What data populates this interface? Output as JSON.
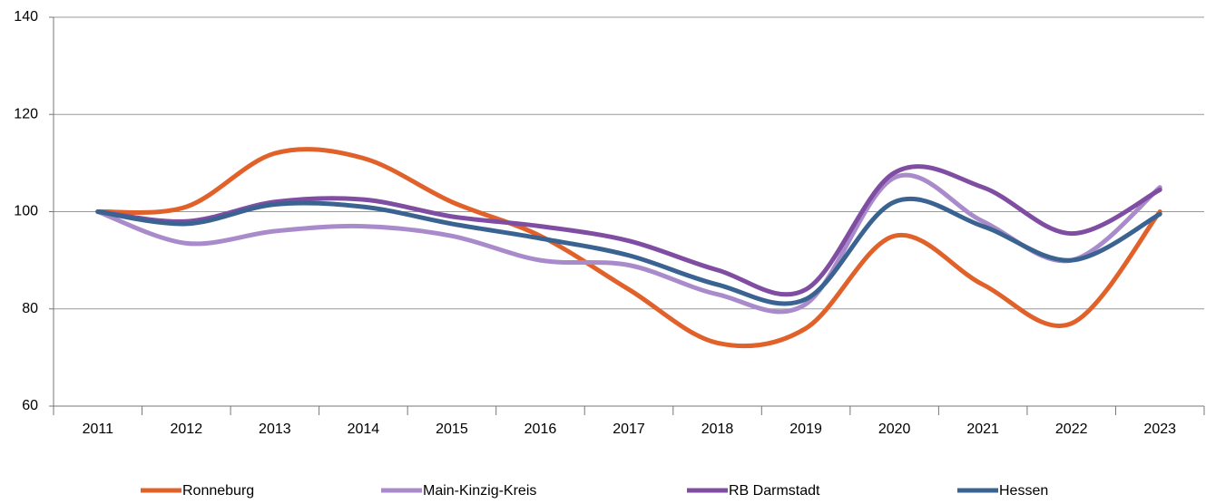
{
  "chart_data": {
    "type": "line",
    "categories": [
      "2011",
      "2012",
      "2013",
      "2014",
      "2015",
      "2016",
      "2017",
      "2018",
      "2019",
      "2020",
      "2021",
      "2022",
      "2023"
    ],
    "series": [
      {
        "name": "Ronneburg",
        "color": "#e0622a",
        "values": [
          100,
          101,
          112,
          111,
          102,
          95,
          84,
          73,
          76,
          95,
          85,
          77,
          100
        ]
      },
      {
        "name": "Main-Kinzig-Kreis",
        "color": "#a98bcc",
        "values": [
          100,
          93.5,
          96,
          97,
          95,
          90,
          89,
          83,
          81,
          107,
          98,
          90,
          105
        ]
      },
      {
        "name": "RB Darmstadt",
        "color": "#7f4ea3",
        "values": [
          100,
          98,
          102,
          102.5,
          99,
          97,
          94,
          88,
          84,
          108,
          105,
          95.5,
          104.5
        ]
      },
      {
        "name": "Hessen",
        "color": "#3a6391",
        "values": [
          100,
          97.5,
          101.5,
          101,
          97.5,
          94.5,
          91,
          85,
          82,
          102,
          97,
          90,
          99.5
        ]
      }
    ],
    "ylim": [
      60,
      140
    ],
    "yticks": [
      60,
      80,
      100,
      120,
      140
    ],
    "grid": true,
    "legend": "bottom"
  }
}
